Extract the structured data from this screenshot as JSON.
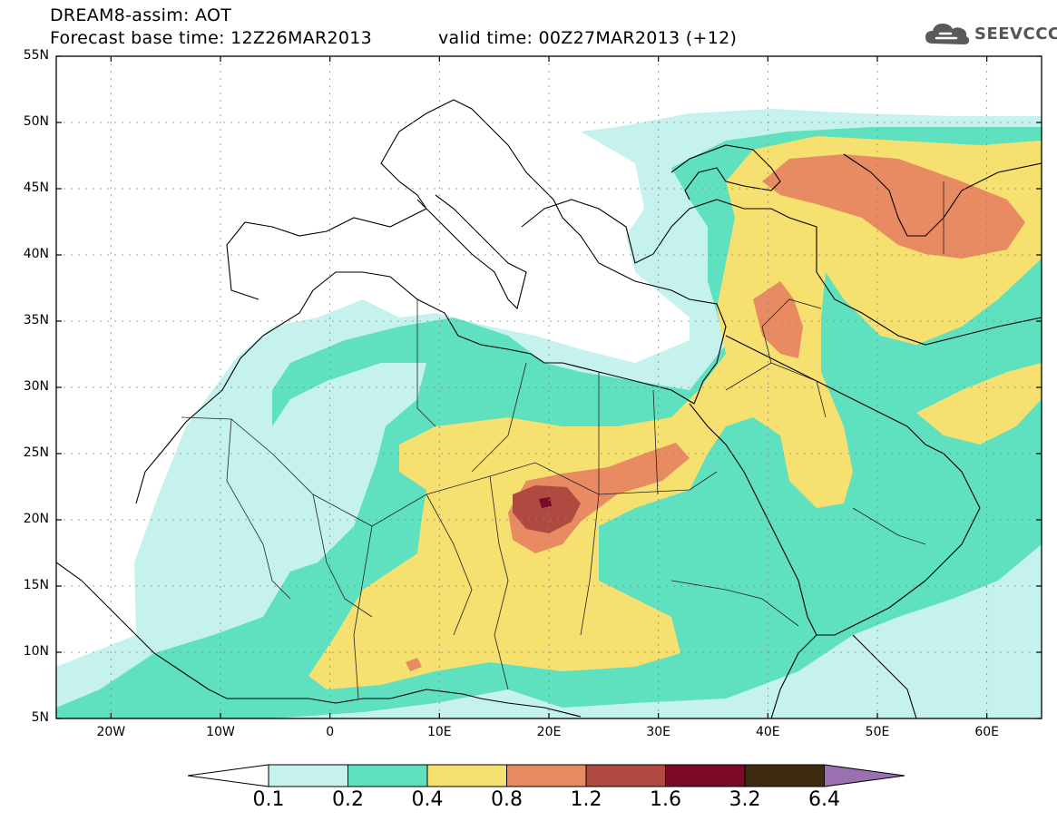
{
  "title": {
    "line1": "DREAM8-assim: AOT",
    "line2": "Forecast base time: 12Z26MAR2013",
    "valid": "valid time: 00Z27MAR2013 (+12)"
  },
  "logo": {
    "icon": "cloud-icon",
    "text": "SEEVCCC"
  },
  "map": {
    "projection": "lat-lon",
    "lon_range": [
      -25,
      65
    ],
    "lat_range": [
      5,
      55
    ],
    "grid": true,
    "lat_labels": [
      "55N",
      "50N",
      "45N",
      "40N",
      "35N",
      "30N",
      "25N",
      "20N",
      "15N",
      "10N",
      "5N"
    ],
    "lat_values": [
      55,
      50,
      45,
      40,
      35,
      30,
      25,
      20,
      15,
      10,
      5
    ],
    "lon_labels": [
      "20W",
      "10W",
      "0",
      "10E",
      "20E",
      "30E",
      "40E",
      "50E",
      "60E"
    ],
    "lon_values": [
      -20,
      -10,
      0,
      10,
      20,
      30,
      40,
      50,
      60
    ]
  },
  "colorbar": {
    "labels": [
      "0.1",
      "0.2",
      "0.4",
      "0.8",
      "1.2",
      "1.6",
      "3.2",
      "6.4"
    ],
    "colors": [
      "#c5f2ec",
      "#5fe0be",
      "#f5e070",
      "#e88a62",
      "#b04a40",
      "#7a0a28",
      "#3d2a10"
    ],
    "under_color": "#ffffff",
    "over_color": "#9a70b0"
  }
}
